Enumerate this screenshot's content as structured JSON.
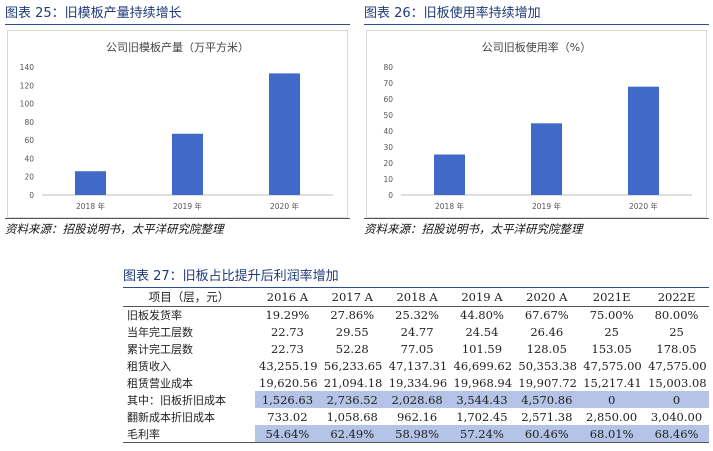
{
  "left_figure": {
    "title": "图表 25：旧模板产量持续增长",
    "source": "资料来源：招股说明书，太平洋研究院整理"
  },
  "right_figure": {
    "title": "图表 26：旧板使用率持续增加",
    "source": "资料来源：招股说明书，太平洋研究院整理"
  },
  "table_figure": {
    "title": "图表 27：旧板占比提升后利润率增加",
    "header": [
      "项目（层，元）",
      "2016 A",
      "2017 A",
      "2018 A",
      "2019 A",
      "2020 A",
      "2021E",
      "2022E"
    ],
    "rows": [
      {
        "label": "旧板发货率",
        "values": [
          "19.29%",
          "27.86%",
          "25.32%",
          "44.80%",
          "67.67%",
          "75.00%",
          "80.00%"
        ]
      },
      {
        "label": "当年完工层数",
        "values": [
          "22.73",
          "29.55",
          "24.77",
          "24.54",
          "26.46",
          "25",
          "25"
        ]
      },
      {
        "label": "累计完工层数",
        "values": [
          "22.73",
          "52.28",
          "77.05",
          "101.59",
          "128.05",
          "153.05",
          "178.05"
        ]
      },
      {
        "label": "租赁收入",
        "values": [
          "43,255.19",
          "56,233.65",
          "47,137.31",
          "46,699.62",
          "50,353.38",
          "47,575.00",
          "47,575.00"
        ]
      },
      {
        "label": "租赁营业成本",
        "values": [
          "19,620.56",
          "21,094.18",
          "19,334.96",
          "19,968.94",
          "19,907.72",
          "15,217.41",
          "15,003.08"
        ]
      },
      {
        "label": "其中：旧板折旧成本",
        "values": [
          "1,526.63",
          "2,736.52",
          "2,028.68",
          "3,544.43",
          "4,570.86",
          "0",
          "0"
        ]
      },
      {
        "label": "翻新成本折旧成本",
        "values": [
          "733.02",
          "1,058.68",
          "962.16",
          "1,702.45",
          "2,571.38",
          "2,850.00",
          "3,040.00"
        ]
      },
      {
        "label": "毛利率",
        "values": [
          "54.64%",
          "62.49%",
          "58.98%",
          "57.24%",
          "60.46%",
          "68.01%",
          "68.46%"
        ]
      }
    ],
    "highlight_color": "#b4c3e6"
  },
  "chart_data": [
    {
      "type": "bar",
      "title": "公司旧模板产量（万平方米）",
      "categories": [
        "2018 年",
        "2019 年",
        "2020 年"
      ],
      "values": [
        26,
        67,
        133
      ],
      "ylim": [
        0,
        140
      ],
      "yticks": [
        0,
        20,
        40,
        60,
        80,
        100,
        120,
        140
      ],
      "grid": false,
      "bar_color": "#4169c8"
    },
    {
      "type": "bar",
      "title": "公司旧板使用率（%）",
      "categories": [
        "2018 年",
        "2019 年",
        "2020 年"
      ],
      "values": [
        25.3,
        44.8,
        67.7
      ],
      "ylim": [
        0,
        80
      ],
      "yticks": [
        0,
        10,
        20,
        30,
        40,
        50,
        60,
        70,
        80
      ],
      "grid": false,
      "bar_color": "#4169c8"
    }
  ]
}
